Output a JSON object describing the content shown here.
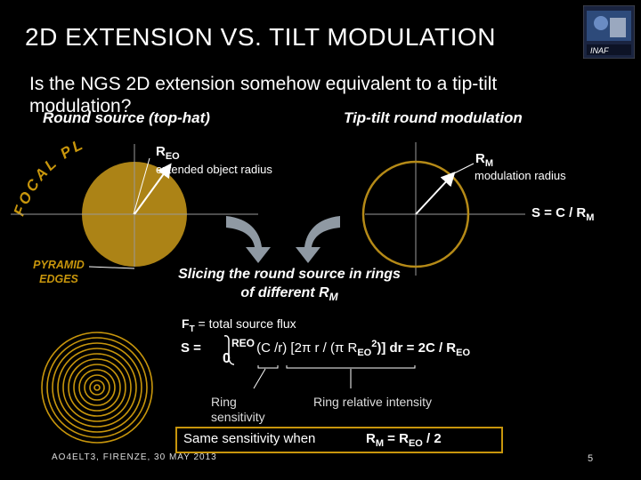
{
  "title": "2D EXTENSION VS. TILT MODULATION",
  "question": "Is the NGS 2D extension somehow equivalent to a tip-tilt modulation?",
  "round_source_heading": "Round source (top-hat)",
  "tip_tilt_heading": "Tip-tilt round modulation",
  "focal_plane_text": "FOCAL PLANE",
  "reo_symbol": "R",
  "reo_sub": "EO",
  "reo_desc": "extended object radius",
  "rm_symbol": "R",
  "rm_sub": "M",
  "rm_desc": "modulation radius",
  "s_equation": "S = C / R",
  "s_equation_sub": "M",
  "pyramid_edges": "PYRAMID EDGES",
  "slicing_text": "Slicing the round source in rings of different R",
  "slicing_sub": "M",
  "ft_symbol": "F",
  "ft_sub": "T",
  "ft_text": " = total source flux",
  "integral_lhs": "S = ",
  "integral_lower": "0",
  "integral_upper": "REO",
  "integral_body": "(C /r) [2π r / (π R",
  "integral_body_sub": "EO",
  "integral_body_sup": "2",
  "integral_tail": ")] dr = 2C / R",
  "integral_tail_sub": "EO",
  "ring_sensitivity": "Ring sensitivity",
  "ring_relative_intensity": "Ring relative intensity",
  "condition_text": "Same sensitivity when",
  "condition_eq_a": "R",
  "condition_eq_a_sub": "M",
  "condition_eq_mid": " = R",
  "condition_eq_b_sub": "EO",
  "condition_eq_end": " / 2",
  "footer": "AO4ELT3, FIRENZE, 30 MAY 2013",
  "page_number": "5",
  "logo_text": "INAF",
  "colors": {
    "accent": "#c8960c",
    "disk": "#b58a17",
    "background": "#000000",
    "arrows": "#8f99a3"
  }
}
